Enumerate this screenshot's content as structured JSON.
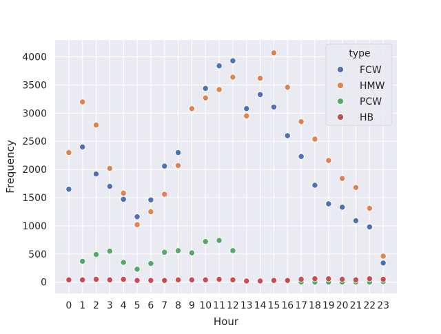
{
  "chart_data": {
    "type": "scatter",
    "title": "",
    "xlabel": "Hour",
    "ylabel": "Frequency",
    "x": [
      0,
      1,
      2,
      3,
      4,
      5,
      6,
      7,
      8,
      9,
      10,
      11,
      12,
      13,
      14,
      15,
      16,
      17,
      18,
      19,
      20,
      21,
      22,
      23
    ],
    "xlim": [
      -1,
      24
    ],
    "ylim": [
      -200,
      4300
    ],
    "yticks": [
      0,
      500,
      1000,
      1500,
      2000,
      2500,
      3000,
      3500,
      4000
    ],
    "grid": true,
    "legend": {
      "title": "type",
      "placement": "top-right"
    },
    "series": [
      {
        "name": "FCW",
        "color": "#4c72b0",
        "values": [
          1650,
          2400,
          1920,
          1700,
          1470,
          1160,
          1460,
          2060,
          2300,
          null,
          3440,
          3840,
          3930,
          3080,
          3330,
          3110,
          2600,
          2230,
          1720,
          1390,
          1330,
          1090,
          980,
          340
        ]
      },
      {
        "name": "HMW",
        "color": "#dd8452",
        "values": [
          2300,
          3200,
          2790,
          2020,
          1580,
          1020,
          1250,
          1560,
          2070,
          3080,
          3270,
          3420,
          3640,
          2950,
          3620,
          4070,
          3460,
          2850,
          2540,
          2160,
          1840,
          1680,
          1310,
          460
        ]
      },
      {
        "name": "PCW",
        "color": "#55a868",
        "values": [
          null,
          370,
          490,
          550,
          350,
          230,
          330,
          530,
          560,
          520,
          720,
          740,
          560,
          null,
          null,
          null,
          null,
          0,
          0,
          0,
          0,
          0,
          0,
          10
        ]
      },
      {
        "name": "HB",
        "color": "#c44e52",
        "values": [
          40,
          40,
          50,
          40,
          50,
          30,
          30,
          30,
          40,
          40,
          40,
          50,
          40,
          20,
          20,
          30,
          30,
          50,
          60,
          60,
          50,
          40,
          60,
          50
        ]
      }
    ]
  }
}
